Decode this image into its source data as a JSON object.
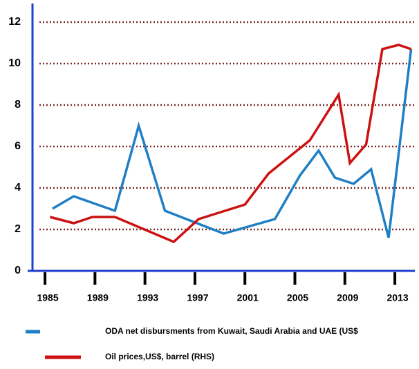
{
  "chart_data": {
    "type": "line",
    "xlim": [
      1984,
      2014.6
    ],
    "xticks": [
      1985,
      1989,
      1993,
      1997,
      2001,
      2005,
      2009,
      2013
    ],
    "ylim": [
      0,
      12.9
    ],
    "yticks": [
      0,
      2,
      4,
      6,
      8,
      10,
      12
    ],
    "grid": true,
    "legend": "bottom",
    "series": [
      {
        "name": "ODA net disbursments from Kuwait, Saudi Arabia and UAE (US$",
        "color": "#1f7fc4",
        "x": [
          1985.6,
          1987.3,
          1990.6,
          1992.5,
          1994.6,
          1999.3,
          2003.4,
          2005.4,
          2006.9,
          2008.2,
          2009.7,
          2011.1,
          2012.5,
          2014.3
        ],
        "values": [
          3.0,
          3.6,
          2.9,
          7.0,
          2.9,
          1.8,
          2.5,
          4.6,
          5.8,
          4.5,
          4.2,
          4.9,
          1.6,
          10.7
        ]
      },
      {
        "name": "Oil prices,US$, barrel (RHS)",
        "color": "#cc1111",
        "x": [
          1985.4,
          1987.3,
          1988.8,
          1990.6,
          1995.3,
          1997.3,
          2001.0,
          2002.9,
          2006.2,
          2008.5,
          2009.4,
          2010.7,
          2012.0,
          2013.3,
          2014.3
        ],
        "values": [
          2.6,
          2.3,
          2.6,
          2.6,
          1.4,
          2.5,
          3.2,
          4.7,
          6.3,
          8.5,
          5.2,
          6.1,
          10.7,
          10.9,
          10.7
        ]
      }
    ]
  }
}
